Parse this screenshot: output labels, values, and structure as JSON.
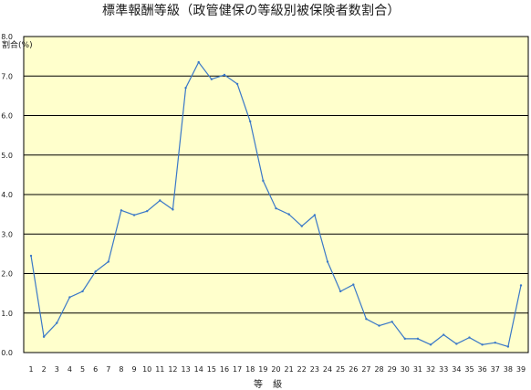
{
  "chart_data": {
    "type": "line",
    "title": "標準報酬等級（政管健保の等級別被保険者数割合）",
    "ylabel": "割合(%)",
    "xlabel": "等 級",
    "ylim": [
      0,
      8
    ],
    "yticks": [
      "0.0",
      "1.0",
      "2.0",
      "3.0",
      "4.0",
      "5.0",
      "6.0",
      "7.0",
      "8.0"
    ],
    "grid": true,
    "legend": "none",
    "categories": [
      "1",
      "2",
      "3",
      "4",
      "5",
      "6",
      "7",
      "8",
      "9",
      "10",
      "11",
      "12",
      "13",
      "14",
      "15",
      "16",
      "17",
      "18",
      "19",
      "20",
      "21",
      "22",
      "23",
      "24",
      "25",
      "26",
      "27",
      "28",
      "29",
      "30",
      "31",
      "32",
      "33",
      "34",
      "35",
      "36",
      "37",
      "38",
      "39"
    ],
    "series": [
      {
        "color": "#3a78c8",
        "values": [
          2.45,
          0.4,
          0.75,
          1.4,
          1.55,
          2.05,
          2.3,
          3.6,
          3.48,
          3.58,
          3.85,
          3.62,
          6.7,
          7.35,
          6.92,
          7.03,
          6.8,
          5.85,
          4.35,
          3.65,
          3.5,
          3.2,
          3.48,
          2.3,
          1.55,
          1.72,
          0.85,
          0.68,
          0.78,
          0.35,
          0.35,
          0.2,
          0.45,
          0.22,
          0.38,
          0.2,
          0.25,
          0.15,
          1.7
        ]
      }
    ],
    "colors": {
      "plot_background": "#ffffcc",
      "grid": "#000000",
      "line": "#3a78c8"
    }
  }
}
